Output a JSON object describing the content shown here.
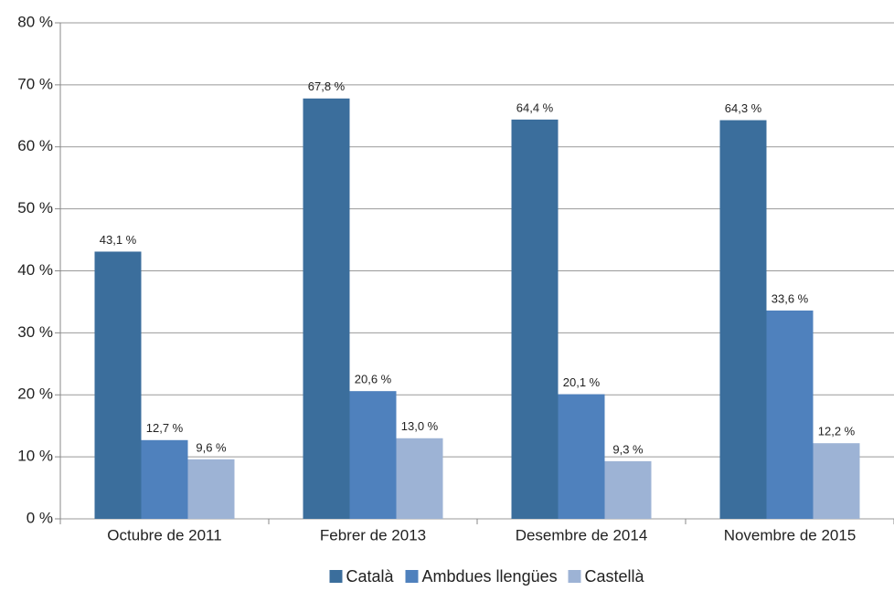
{
  "chart_data": {
    "type": "bar",
    "categories": [
      "Octubre de 2011",
      "Febrer de 2013",
      "Desembre de 2014",
      "Novembre de 2015"
    ],
    "series": [
      {
        "name": "Català",
        "color": "#3b6e9c",
        "values": [
          43.1,
          67.8,
          64.4,
          64.3
        ],
        "value_labels": [
          "43,1 %",
          "67,8 %",
          "64,4 %",
          "64,3 %"
        ]
      },
      {
        "name": "Ambdues llengües",
        "color": "#4f81bd",
        "values": [
          12.7,
          20.6,
          20.1,
          33.6
        ],
        "value_labels": [
          "12,7 %",
          "20,6 %",
          "20,1 %",
          "33,6 %"
        ]
      },
      {
        "name": "Castellà",
        "color": "#9db3d5",
        "values": [
          9.6,
          13.0,
          9.3,
          12.2
        ],
        "value_labels": [
          "9,6 %",
          "13,0 %",
          "9,3 %",
          "12,2 %"
        ]
      }
    ],
    "ylim": [
      0,
      80
    ],
    "yticks": [
      {
        "value": 0,
        "label": "0 %"
      },
      {
        "value": 10,
        "label": "10 %"
      },
      {
        "value": 20,
        "label": "20 %"
      },
      {
        "value": 30,
        "label": "30 %"
      },
      {
        "value": 40,
        "label": "40 %"
      },
      {
        "value": 50,
        "label": "50 %"
      },
      {
        "value": 60,
        "label": "60 %"
      },
      {
        "value": 70,
        "label": "70 %"
      },
      {
        "value": 80,
        "label": "80 %"
      }
    ],
    "grid": true,
    "legend": "bottom"
  }
}
